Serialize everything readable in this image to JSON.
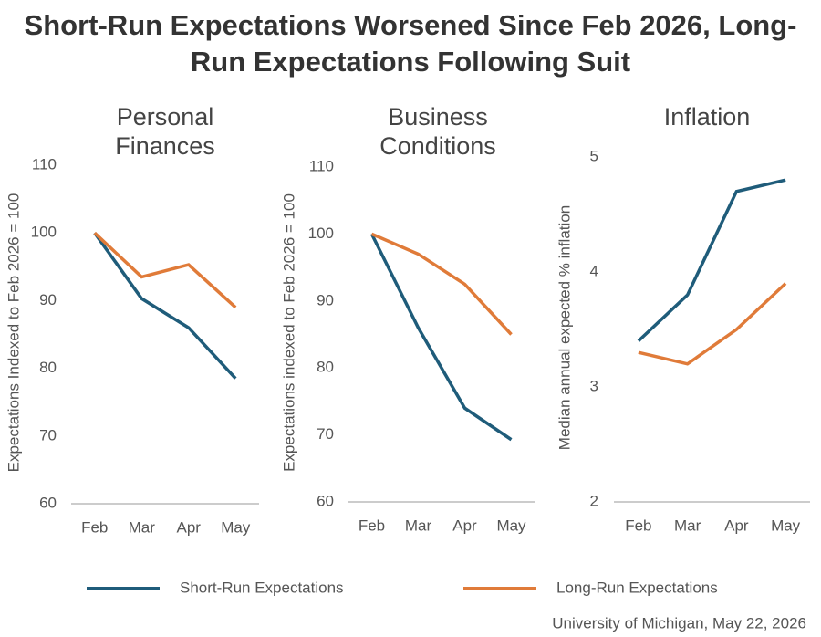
{
  "title": "Short-Run Expectations Worsened Since Feb 2026, Long-Run Expectations Following Suit",
  "source": "University of Michigan, May 22, 2026",
  "chart_data": [
    {
      "type": "line",
      "title": "Personal Finances",
      "y_label": "Expectations Indexed to Feb 2026 = 100",
      "categories": [
        "Feb",
        "Mar",
        "Apr",
        "May"
      ],
      "series": [
        {
          "name": "Short-Run Expectations",
          "color": "#1f5c7a",
          "values": [
            100,
            90.3,
            86,
            78.5
          ]
        },
        {
          "name": "Long-Run Expectations",
          "color": "#e07b39",
          "values": [
            100,
            93.5,
            95.3,
            89
          ]
        }
      ],
      "ylim": [
        60,
        110
      ],
      "yticks": [
        60,
        70,
        80,
        90,
        100,
        110
      ]
    },
    {
      "type": "line",
      "title": "Business Conditions",
      "y_label": "Expectations indexed to Feb 2026 = 100",
      "categories": [
        "Feb",
        "Mar",
        "Apr",
        "May"
      ],
      "series": [
        {
          "color": "#1f5c7a",
          "values": [
            100,
            86,
            74,
            69.3
          ]
        },
        {
          "color": "#e07b39",
          "values": [
            100,
            97,
            92.5,
            85
          ]
        }
      ],
      "ylim": [
        60,
        110
      ],
      "yticks": [
        60,
        70,
        80,
        90,
        100,
        110
      ]
    },
    {
      "type": "line",
      "title": "Inflation",
      "y_label": "Median annual expected % inflation",
      "categories": [
        "Feb",
        "Mar",
        "Apr",
        "May"
      ],
      "series": [
        {
          "color": "#1f5c7a",
          "values": [
            3.4,
            3.8,
            4.7,
            4.8
          ]
        },
        {
          "color": "#e07b39",
          "values": [
            3.3,
            3.2,
            3.5,
            3.9
          ]
        }
      ],
      "ylim": [
        2,
        5
      ],
      "yticks": [
        2,
        3,
        4,
        5
      ]
    }
  ]
}
